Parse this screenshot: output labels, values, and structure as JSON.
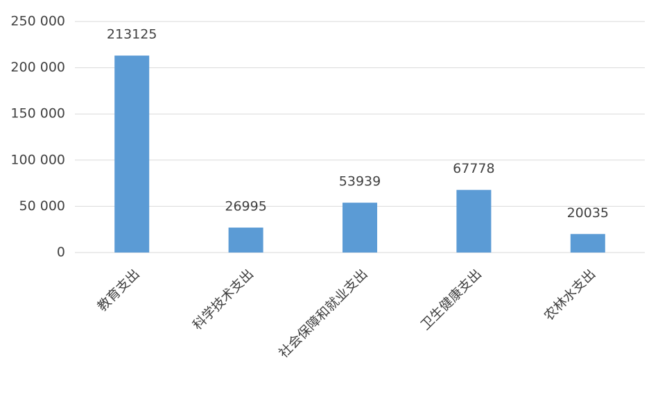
{
  "chart_data": {
    "type": "bar",
    "categories": [
      "教育支出",
      "科学技术支出",
      "社会保障和就业支出",
      "卫生健康支出",
      "农林水支出"
    ],
    "values": [
      213125,
      26995,
      53939,
      67778,
      20035
    ],
    "color": "#5b9bd5",
    "ylim": [
      0,
      250000
    ],
    "yticks": [
      0,
      {
        "value": 50000,
        "label": "50 000"
      },
      {
        "value": 100000,
        "label": "100 000"
      },
      {
        "value": 150000,
        "label": "150 000"
      },
      {
        "value": 200000,
        "label": "200 000"
      },
      {
        "value": 250000,
        "label": "250 000"
      }
    ],
    "grid": true
  }
}
